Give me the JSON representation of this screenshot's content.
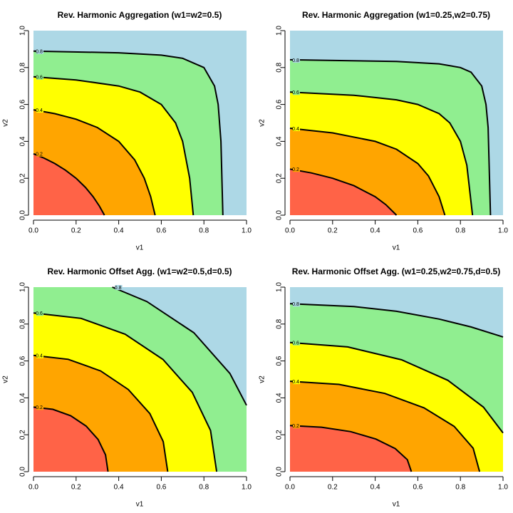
{
  "chart_data": [
    {
      "type": "contour",
      "title": "Rev. Harmonic Aggregation (w1=w2=0.5)",
      "x_label": "v1",
      "y_label": "v2",
      "xlim": [
        0,
        1
      ],
      "ylim": [
        0,
        1
      ],
      "xticks": [
        {
          "value": 0,
          "label": "0.0"
        },
        0.2,
        0.4,
        0.6,
        0.8,
        {
          "value": 1,
          "label": "1.0"
        }
      ],
      "yticks": [
        {
          "value": 0,
          "label": "0.0"
        },
        0.2,
        0.4,
        0.6,
        0.8,
        {
          "value": 1,
          "label": "1.0"
        }
      ],
      "fill_colors": [
        "#ff6347",
        "#ffa500",
        "#ffff00",
        "#90ee90",
        "#add8e6"
      ],
      "contours": [
        {
          "level": 0.2,
          "x": [
            0,
            0.05,
            0.1,
            0.15,
            0.2,
            0.244,
            0.28,
            0.309,
            0.333
          ],
          "y": [
            0.333,
            0.309,
            0.28,
            0.244,
            0.2,
            0.15,
            0.1,
            0.05,
            0
          ]
        },
        {
          "level": 0.4,
          "x": [
            0,
            0.1,
            0.2,
            0.3,
            0.4,
            0.475,
            0.52,
            0.55,
            0.571
          ],
          "y": [
            0.571,
            0.55,
            0.52,
            0.475,
            0.4,
            0.3,
            0.2,
            0.1,
            0
          ]
        },
        {
          "level": 0.6,
          "x": [
            0,
            0.2,
            0.4,
            0.5,
            0.6,
            0.667,
            0.7,
            0.733,
            0.75
          ],
          "y": [
            0.75,
            0.733,
            0.7,
            0.667,
            0.6,
            0.5,
            0.4,
            0.2,
            0
          ]
        },
        {
          "level": 0.8,
          "x": [
            0,
            0.4,
            0.6,
            0.7,
            0.8,
            0.85,
            0.867,
            0.88,
            0.889
          ],
          "y": [
            0.889,
            0.88,
            0.867,
            0.85,
            0.8,
            0.7,
            0.6,
            0.4,
            0
          ]
        }
      ]
    },
    {
      "type": "contour",
      "title": "Rev. Harmonic Aggregation (w1=0.25,w2=0.75)",
      "x_label": "v1",
      "y_label": "v2",
      "xlim": [
        0,
        1
      ],
      "ylim": [
        0,
        1
      ],
      "xticks": [
        {
          "value": 0,
          "label": "0.0"
        },
        0.2,
        0.4,
        0.6,
        0.8,
        {
          "value": 1,
          "label": "1.0"
        }
      ],
      "yticks": [
        {
          "value": 0,
          "label": "0.0"
        },
        0.2,
        0.4,
        0.6,
        0.8,
        {
          "value": 1,
          "label": "1.0"
        }
      ],
      "fill_colors": [
        "#ff6347",
        "#ffa500",
        "#ffff00",
        "#90ee90",
        "#add8e6"
      ],
      "contours": [
        {
          "level": 0.2,
          "x": [
            0,
            0.1,
            0.2,
            0.3,
            0.4,
            0.45,
            0.5
          ],
          "y": [
            0.25,
            0.229,
            0.2,
            0.16,
            0.1,
            0.057,
            0
          ]
        },
        {
          "level": 0.4,
          "x": [
            0,
            0.2,
            0.4,
            0.5,
            0.6,
            0.65,
            0.7,
            0.727
          ],
          "y": [
            0.471,
            0.446,
            0.4,
            0.357,
            0.28,
            0.2125,
            0.1,
            0
          ]
        },
        {
          "level": 0.6,
          "x": [
            0,
            0.3,
            0.5,
            0.6,
            0.7,
            0.75,
            0.8,
            0.83,
            0.857
          ],
          "y": [
            0.667,
            0.65,
            0.625,
            0.6,
            0.55,
            0.5,
            0.4,
            0.271,
            0
          ]
        },
        {
          "level": 0.8,
          "x": [
            0,
            0.5,
            0.7,
            0.8,
            0.85,
            0.9,
            0.92,
            0.93,
            0.941
          ],
          "y": [
            0.842,
            0.833,
            0.82,
            0.8,
            0.775,
            0.7,
            0.6,
            0.475,
            0
          ]
        }
      ]
    },
    {
      "type": "contour",
      "title": "Rev. Harmonic Offset Agg. (w1=w2=0.5,d=0.5)",
      "x_label": "v1",
      "y_label": "v2",
      "xlim": [
        0,
        1
      ],
      "ylim": [
        0,
        1
      ],
      "xticks": [
        {
          "value": 0,
          "label": "0.0"
        },
        0.2,
        0.4,
        0.6,
        0.8,
        {
          "value": 1,
          "label": "1.0"
        }
      ],
      "yticks": [
        {
          "value": 0,
          "label": "0.0"
        },
        0.2,
        0.4,
        0.6,
        0.8,
        {
          "value": 1,
          "label": "1.0"
        }
      ],
      "fill_colors": [
        "#ff6347",
        "#ffa500",
        "#ffff00",
        "#90ee90",
        "#add8e6"
      ],
      "contours": [
        {
          "level": 0.2,
          "x": [
            0,
            0.091,
            0.175,
            0.247,
            0.303,
            0.338,
            0.35
          ],
          "y": [
            0.35,
            0.338,
            0.303,
            0.247,
            0.175,
            0.091,
            0
          ]
        },
        {
          "level": 0.4,
          "x": [
            0,
            0.163,
            0.315,
            0.445,
            0.546,
            0.609,
            0.63
          ],
          "y": [
            0.63,
            0.609,
            0.546,
            0.445,
            0.315,
            0.163,
            0
          ]
        },
        {
          "level": 0.6,
          "x": [
            0,
            0.223,
            0.43,
            0.608,
            0.745,
            0.831,
            0.86
          ],
          "y": [
            0.86,
            0.831,
            0.745,
            0.608,
            0.43,
            0.223,
            0
          ]
        },
        {
          "level": 0.8,
          "x": [
            0.37,
            0.532,
            0.753,
            0.922,
            1
          ],
          "y": [
            1,
            0.922,
            0.753,
            0.532,
            0.36
          ]
        }
      ]
    },
    {
      "type": "contour",
      "title": "Rev. Harmonic Offset Agg. (w1=0.25,w2=0.75,d=0.5)",
      "x_label": "v1",
      "y_label": "v2",
      "xlim": [
        0,
        1
      ],
      "ylim": [
        0,
        1
      ],
      "xticks": [
        {
          "value": 0,
          "label": "0.0"
        },
        0.2,
        0.4,
        0.6,
        0.8,
        {
          "value": 1,
          "label": "1.0"
        }
      ],
      "yticks": [
        {
          "value": 0,
          "label": "0.0"
        },
        0.2,
        0.4,
        0.6,
        0.8,
        {
          "value": 1,
          "label": "1.0"
        }
      ],
      "fill_colors": [
        "#ff6347",
        "#ffa500",
        "#ffff00",
        "#90ee90",
        "#add8e6"
      ],
      "contours": [
        {
          "level": 0.2,
          "x": [
            0,
            0.148,
            0.285,
            0.403,
            0.494,
            0.551,
            0.57
          ],
          "y": [
            0.25,
            0.241,
            0.217,
            0.177,
            0.125,
            0.065,
            0
          ]
        },
        {
          "level": 0.4,
          "x": [
            0,
            0.23,
            0.445,
            0.629,
            0.771,
            0.86,
            0.89
          ],
          "y": [
            0.49,
            0.473,
            0.424,
            0.346,
            0.245,
            0.127,
            0
          ]
        },
        {
          "level": 0.6,
          "x": [
            0,
            0.271,
            0.524,
            0.741,
            0.908,
            1
          ],
          "y": [
            0.7,
            0.676,
            0.606,
            0.495,
            0.35,
            0.21
          ]
        },
        {
          "level": 0.8,
          "x": [
            0,
            0.3,
            0.5,
            0.7,
            0.85,
            1
          ],
          "y": [
            0.91,
            0.895,
            0.869,
            0.827,
            0.784,
            0.73
          ]
        }
      ]
    }
  ]
}
